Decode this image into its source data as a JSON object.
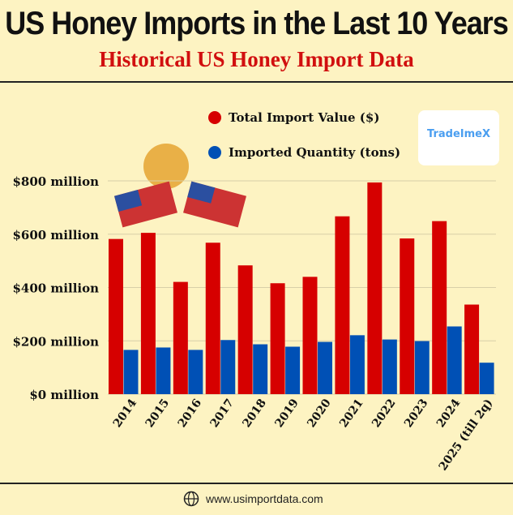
{
  "header": {
    "title": "US Honey Imports in the Last 10 Years",
    "subtitle": "Historical US Honey Import Data"
  },
  "footer": {
    "website": "www.usimportdata.com",
    "icon": "globe-icon"
  },
  "logo": {
    "text": "TradeImeX"
  },
  "colors": {
    "background": "#fdf3c2",
    "value": "#d60000",
    "quantity": "#0050b5",
    "subtitle": "#d10f0f"
  },
  "chart_data": {
    "type": "bar",
    "categories": [
      "2014",
      "2015",
      "2016",
      "2017",
      "2018",
      "2019",
      "2020",
      "2021",
      "2022",
      "2023",
      "2024",
      "2025 (till 2q)"
    ],
    "series": [
      {
        "name": "Total Import Value ($)",
        "color": "#d60000",
        "values": [
          582,
          605,
          421,
          568,
          483,
          416,
          440,
          667,
          794,
          584,
          649,
          336
        ]
      },
      {
        "name": "Imported Quantity (tons)",
        "color": "#0050b5",
        "values": [
          166,
          175,
          166,
          203,
          187,
          178,
          196,
          221,
          205,
          199,
          254,
          118
        ]
      }
    ],
    "yticks": [
      "$0 million",
      "$200 million",
      "$400 million",
      "$600 million",
      "$800 million"
    ],
    "ytick_values": [
      0,
      200,
      400,
      600,
      800
    ],
    "ylim": [
      0,
      800
    ],
    "grid": true,
    "legend": "top-center"
  }
}
